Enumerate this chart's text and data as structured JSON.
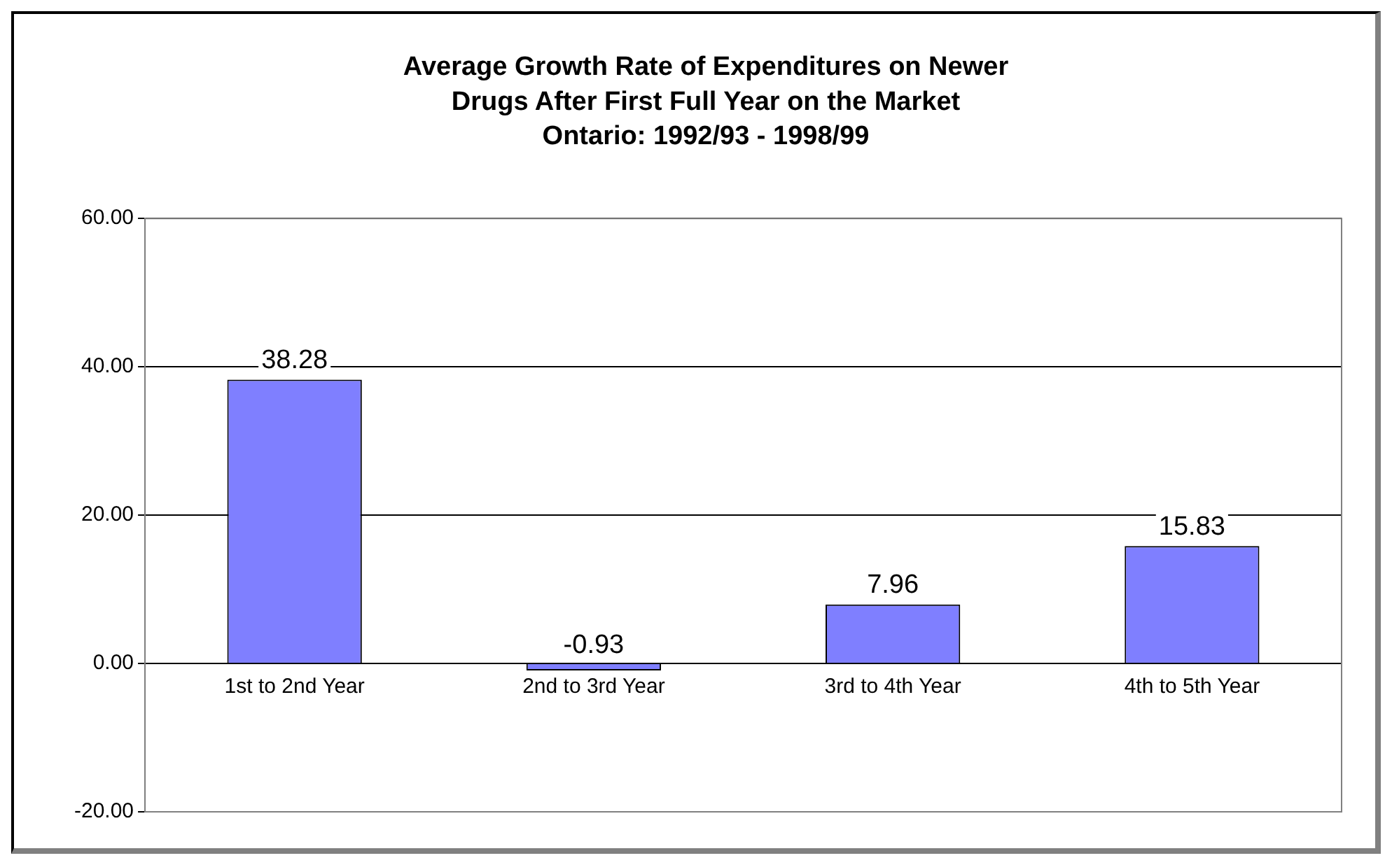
{
  "chart_data": {
    "type": "bar",
    "title": "Average Growth Rate of Expenditures on Newer\nDrugs After First Full Year on the Market\nOntario: 1992/93 - 1998/99",
    "categories": [
      "1st to 2nd Year",
      "2nd to 3rd Year",
      "3rd to 4th Year",
      "4th to 5th Year"
    ],
    "values": [
      38.28,
      -0.93,
      7.96,
      15.83
    ],
    "color": "#7f7fff",
    "ylim": [
      -20,
      60
    ],
    "yticks": [
      {
        "value": -20,
        "label": "-20.00"
      },
      {
        "value": 0,
        "label": "0.00"
      },
      {
        "value": 20,
        "label": "20.00"
      },
      {
        "value": 40,
        "label": "40.00"
      },
      {
        "value": 60,
        "label": "60.00"
      }
    ],
    "grid": "y",
    "legend": false,
    "data_labels": true
  }
}
